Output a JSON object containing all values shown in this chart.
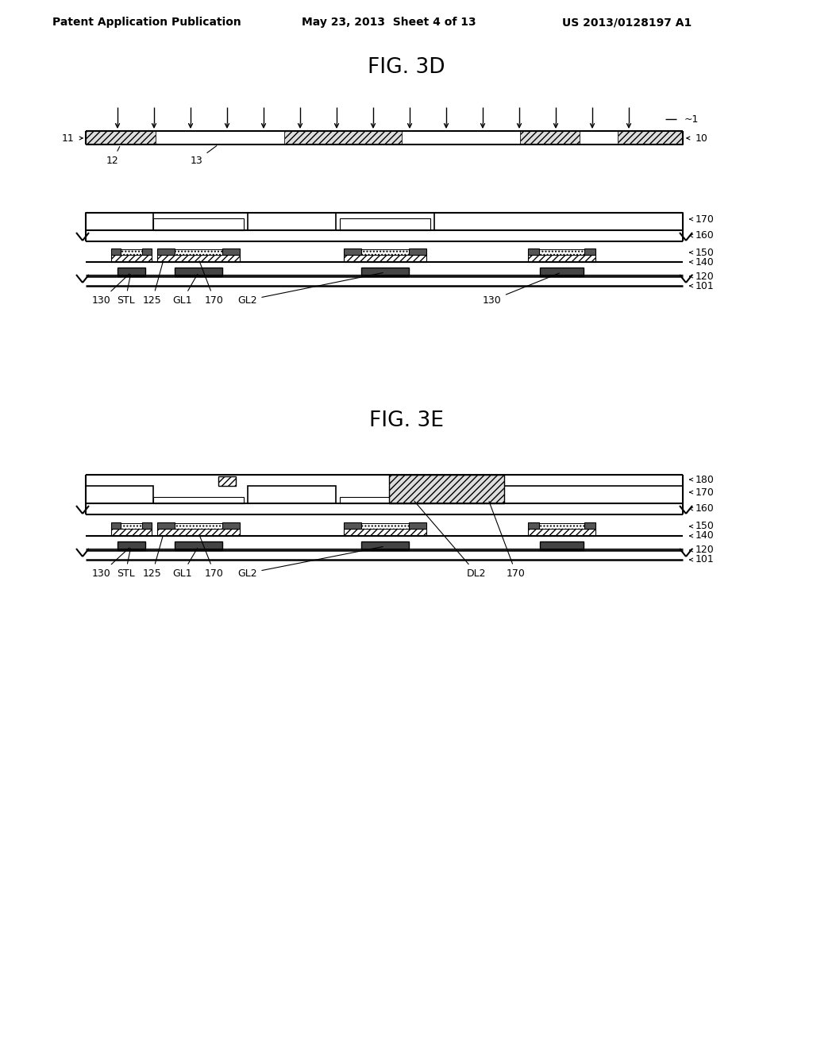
{
  "bg": "#ffffff",
  "header_left": "Patent Application Publication",
  "header_center": "May 23, 2013  Sheet 4 of 13",
  "header_right": "US 2013/0128197 A1",
  "fig3d_title": "FIG. 3D",
  "fig3e_title": "FIG. 3E"
}
